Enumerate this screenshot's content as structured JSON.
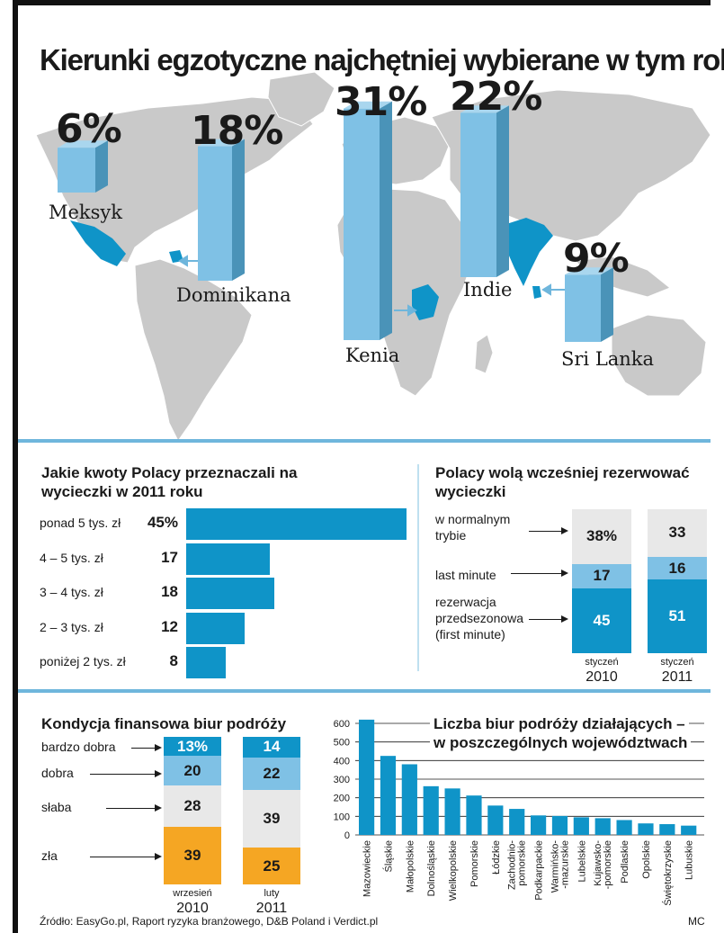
{
  "title": "Kierunki egzotyczne najchętniej wybierane w tym roku",
  "colors": {
    "accent": "#0f94c8",
    "light_blue": "#7fc1e5",
    "gray": "#e8e8e8",
    "orange": "#f5a623",
    "map": "#c9c9c9"
  },
  "map_chart": {
    "type": "bar",
    "unit": "%",
    "items": [
      {
        "country": "Meksyk",
        "value": 6,
        "label": "6%"
      },
      {
        "country": "Dominikana",
        "value": 18,
        "label": "18%"
      },
      {
        "country": "Kenia",
        "value": 31,
        "label": "31%"
      },
      {
        "country": "Indie",
        "value": 22,
        "label": "22%"
      },
      {
        "country": "Sri Lanka",
        "value": 9,
        "label": "9%"
      }
    ]
  },
  "chart_data": [
    {
      "type": "bar",
      "title": "Jakie kwoty Polacy przeznaczali na wycieczki w 2011 roku",
      "categories": [
        "ponad 5 tys. zł",
        "4 – 5 tys. zł",
        "3 – 4 tys. zł",
        "2 – 3 tys. zł",
        "poniżej 2 tys. zł"
      ],
      "values": [
        45,
        17,
        18,
        12,
        8
      ],
      "value_labels": [
        "45%",
        "17",
        "18",
        "12",
        "8"
      ]
    },
    {
      "type": "bar",
      "title": "Polacy wolą wcześniej rezerwować wycieczki",
      "segment_labels": [
        "w normalnym trybie",
        "last minute",
        "rezerwacja przedsezonowa (first minute)"
      ],
      "columns": [
        {
          "month": "styczeń",
          "year": "2010",
          "values": [
            38,
            17,
            45
          ],
          "labels": [
            "38%",
            "17",
            "45"
          ]
        },
        {
          "month": "styczeń",
          "year": "2011",
          "values": [
            33,
            16,
            51
          ],
          "labels": [
            "33",
            "16",
            "51"
          ]
        }
      ]
    },
    {
      "type": "bar",
      "title": "Kondycja finansowa biur podróży",
      "segment_labels": [
        "bardzo dobra",
        "dobra",
        "słaba",
        "zła"
      ],
      "columns": [
        {
          "month": "wrzesień",
          "year": "2010",
          "values": [
            13,
            20,
            28,
            39
          ],
          "labels": [
            "13%",
            "20",
            "28",
            "39"
          ]
        },
        {
          "month": "luty",
          "year": "2011",
          "values": [
            14,
            22,
            39,
            25
          ],
          "labels": [
            "14",
            "22",
            "39",
            "25"
          ]
        }
      ]
    },
    {
      "type": "bar",
      "title_line1": "Liczba biur podróży działających –",
      "title_line2": "w poszczególnych województwach",
      "ylim": [
        0,
        600
      ],
      "yticks": [
        "0",
        "100",
        "200",
        "300",
        "400",
        "500",
        "600"
      ],
      "categories": [
        "Mazowieckie",
        "Śląskie",
        "Małopolskie",
        "Dolnośląskie",
        "Wielkopolskie",
        "Pomorskie",
        "Łódzkie",
        "Zachodnio-\npomorskie",
        "Podkarpackie",
        "Warmińsko-\n-mazurskie",
        "Lubelskie",
        "Kujawsko-\n-pomorskie",
        "Podlaskie",
        "Opolskie",
        "Świętokrzyskie",
        "Lubuskie"
      ],
      "values": [
        620,
        425,
        380,
        262,
        250,
        212,
        158,
        140,
        105,
        102,
        95,
        90,
        80,
        62,
        58,
        50
      ]
    }
  ],
  "footer": {
    "source": "Źródło: EasyGo.pl, Raport ryzyka branżowego, D&B Poland i Verdict.pl",
    "author": "MC"
  }
}
